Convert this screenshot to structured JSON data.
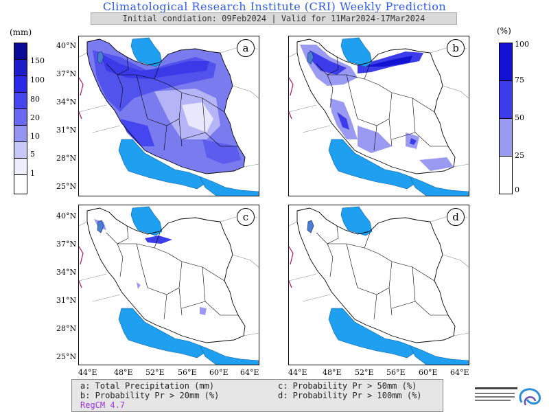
{
  "header": {
    "title": "Climatological Research Institute (CRI) Weekly Prediction",
    "subtitle": "Initial condiation: 09Feb2024 | Valid for 11Mar2024-17Mar2024"
  },
  "colorbar_precip": {
    "unit": "(mm)",
    "labels": [
      "150",
      "100",
      "80",
      "20",
      "10",
      "5",
      "1"
    ],
    "colors": [
      "#0a0a96",
      "#1c1cc8",
      "#2a2ae8",
      "#4646f0",
      "#6868f0",
      "#9494f2",
      "#c8c8f8",
      "#eeeefc",
      "#ffffff"
    ]
  },
  "colorbar_prob": {
    "unit": "(%)",
    "labels": [
      "100",
      "75",
      "50",
      "25",
      "0"
    ],
    "colors": [
      "#1212d2",
      "#3c3cea",
      "#9a9af2",
      "#ffffff"
    ]
  },
  "panels": {
    "a": "a",
    "b": "b",
    "c": "c",
    "d": "d"
  },
  "lat_labels": [
    "40°N",
    "37°N",
    "34°N",
    "31°N",
    "28°N",
    "25°N"
  ],
  "lon_labels": [
    "44°E",
    "48°E",
    "52°E",
    "56°E",
    "60°E",
    "64°E"
  ],
  "legend": {
    "a": "a: Total Precipitation (mm)",
    "b": "b: Probability Pr > 20mm (%)",
    "c": "c: Probability Pr > 50mm (%)",
    "d": "d: Probability Pr > 100mm (%)",
    "model": "RegCM 4.7"
  },
  "colors": {
    "sea": "#1e9fef",
    "lake": "#4a7fd0"
  }
}
